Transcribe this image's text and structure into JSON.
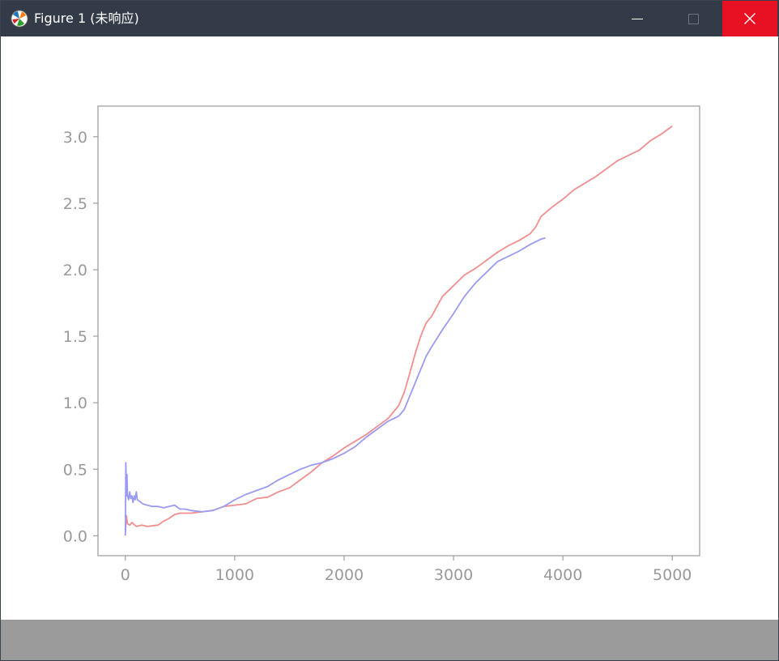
{
  "window": {
    "title": "Figure 1 (未响应)",
    "accent_close": "#e81123",
    "titlebar_color": "#333b48",
    "statusbar_color": "#9b9b9b"
  },
  "chart_data": {
    "type": "line",
    "title": "",
    "xlabel": "",
    "ylabel": "",
    "xlim": [
      -250,
      5250
    ],
    "ylim": [
      -0.15,
      3.23
    ],
    "xticks": [
      0,
      1000,
      2000,
      3000,
      4000,
      5000
    ],
    "xtick_labels": [
      "0",
      "1000",
      "2000",
      "3000",
      "4000",
      "5000"
    ],
    "yticks": [
      0.0,
      0.5,
      1.0,
      1.5,
      2.0,
      2.5,
      3.0
    ],
    "ytick_labels": [
      "0.0",
      "0.5",
      "1.0",
      "1.5",
      "2.0",
      "2.5",
      "3.0"
    ],
    "grid": false,
    "legend": "none",
    "series": [
      {
        "color": "#f28e8e",
        "x": [
          0,
          10,
          20,
          40,
          60,
          100,
          150,
          200,
          300,
          350,
          400,
          450,
          500,
          600,
          700,
          800,
          900,
          1000,
          1100,
          1200,
          1300,
          1400,
          1500,
          1600,
          1700,
          1800,
          1900,
          2000,
          2100,
          2200,
          2300,
          2400,
          2500,
          2550,
          2600,
          2650,
          2700,
          2750,
          2800,
          2900,
          3000,
          3100,
          3200,
          3300,
          3400,
          3500,
          3600,
          3700,
          3750,
          3800,
          3900,
          4000,
          4100,
          4200,
          4300,
          4400,
          4500,
          4600,
          4700,
          4800,
          4900,
          5000
        ],
        "y": [
          0.02,
          0.15,
          0.09,
          0.08,
          0.1,
          0.07,
          0.08,
          0.07,
          0.08,
          0.11,
          0.13,
          0.16,
          0.17,
          0.17,
          0.18,
          0.19,
          0.22,
          0.23,
          0.24,
          0.28,
          0.29,
          0.33,
          0.36,
          0.42,
          0.48,
          0.55,
          0.6,
          0.66,
          0.71,
          0.76,
          0.82,
          0.88,
          0.98,
          1.08,
          1.22,
          1.37,
          1.5,
          1.6,
          1.65,
          1.8,
          1.88,
          1.96,
          2.01,
          2.07,
          2.13,
          2.18,
          2.22,
          2.27,
          2.32,
          2.4,
          2.47,
          2.53,
          2.6,
          2.65,
          2.7,
          2.76,
          2.82,
          2.86,
          2.9,
          2.97,
          3.02,
          3.08
        ]
      },
      {
        "color": "#9a9af2",
        "x": [
          0,
          5,
          10,
          15,
          20,
          30,
          40,
          50,
          60,
          70,
          80,
          90,
          100,
          110,
          130,
          160,
          200,
          250,
          300,
          350,
          400,
          450,
          500,
          550,
          600,
          700,
          800,
          900,
          1000,
          1100,
          1200,
          1300,
          1400,
          1500,
          1600,
          1700,
          1800,
          1900,
          2000,
          2100,
          2200,
          2300,
          2400,
          2500,
          2550,
          2600,
          2650,
          2700,
          2750,
          2800,
          2900,
          3000,
          3100,
          3200,
          3300,
          3400,
          3500,
          3600,
          3700,
          3800,
          3840
        ],
        "y": [
          0.0,
          0.55,
          0.3,
          0.46,
          0.3,
          0.27,
          0.33,
          0.28,
          0.3,
          0.25,
          0.3,
          0.27,
          0.33,
          0.27,
          0.26,
          0.24,
          0.23,
          0.22,
          0.22,
          0.21,
          0.22,
          0.23,
          0.2,
          0.2,
          0.19,
          0.18,
          0.19,
          0.22,
          0.27,
          0.31,
          0.34,
          0.37,
          0.42,
          0.46,
          0.5,
          0.53,
          0.55,
          0.58,
          0.62,
          0.67,
          0.74,
          0.8,
          0.86,
          0.9,
          0.95,
          1.05,
          1.15,
          1.25,
          1.35,
          1.42,
          1.55,
          1.67,
          1.8,
          1.9,
          1.98,
          2.06,
          2.1,
          2.14,
          2.19,
          2.23,
          2.24
        ]
      }
    ]
  }
}
